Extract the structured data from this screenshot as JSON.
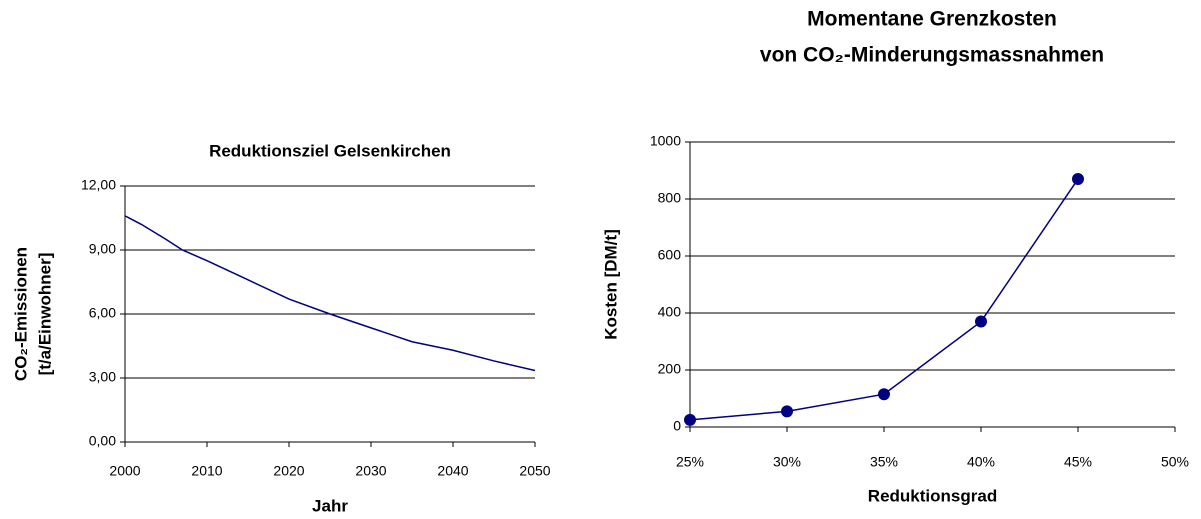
{
  "charts": [
    {
      "chart_data": {
        "type": "line",
        "title": "Reduktionsziel Gelsenkirchen",
        "x_label": "Jahr",
        "y_label": [
          "CO₂-Emissionen",
          "[t/a/Einwohner]"
        ],
        "x": [
          2000,
          2002,
          2005,
          2007,
          2010,
          2015,
          2020,
          2025,
          2030,
          2035,
          2040,
          2045,
          2050
        ],
        "series": [
          {
            "color": "#000080",
            "values": [
              10.6,
              10.2,
              9.5,
              9.0,
              8.5,
              7.6,
              6.7,
              6.0,
              5.35,
              4.7,
              4.3,
              3.8,
              3.35
            ]
          }
        ],
        "xlim": [
          2000,
          2050
        ],
        "xticks": [
          2000,
          2010,
          2020,
          2030,
          2040,
          2050
        ],
        "ylim": [
          0,
          12
        ],
        "yticks": [
          {
            "value": 0,
            "label": "0,00"
          },
          {
            "value": 3,
            "label": "3,00"
          },
          {
            "value": 6,
            "label": "6,00"
          },
          {
            "value": 9,
            "label": "9,00"
          },
          {
            "value": 12,
            "label": "12,00"
          }
        ],
        "grid": true,
        "markers": false
      }
    },
    {
      "chart_data": {
        "type": "line",
        "title": [
          "Momentane Grenzkosten",
          "von CO₂-Minderungsmassnahmen"
        ],
        "x_label": "Reduktionsgrad",
        "y_label": [
          "Kosten [DM/t]"
        ],
        "x": [
          25,
          30,
          35,
          40,
          45
        ],
        "series": [
          {
            "color": "#000080",
            "values": [
              25,
              55,
              115,
              370,
              870
            ]
          }
        ],
        "xlim": [
          25,
          50
        ],
        "xticks": [
          {
            "value": 25,
            "label": "25%"
          },
          {
            "value": 30,
            "label": "30%"
          },
          {
            "value": 35,
            "label": "35%"
          },
          {
            "value": 40,
            "label": "40%"
          },
          {
            "value": 45,
            "label": "45%"
          },
          {
            "value": 50,
            "label": "50%"
          }
        ],
        "ylim": [
          0,
          1000
        ],
        "yticks": [
          0,
          200,
          400,
          600,
          800,
          1000
        ],
        "grid": true,
        "markers": true
      }
    }
  ]
}
